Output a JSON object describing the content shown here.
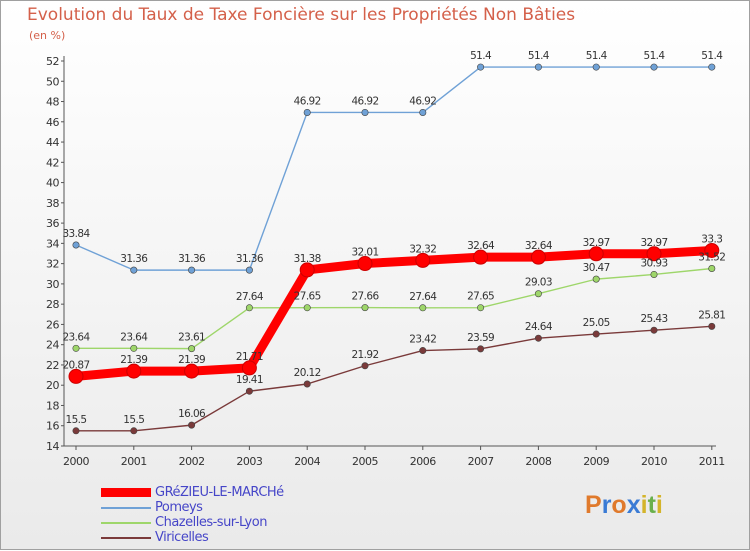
{
  "chart_data": {
    "type": "line",
    "title": "Evolution du Taux de Taxe Foncière sur les Propriétés Non Bâties",
    "ylabel": "(en %)",
    "xlabel": "",
    "categories": [
      "2000",
      "2001",
      "2002",
      "2003",
      "2004",
      "2005",
      "2006",
      "2007",
      "2008",
      "2009",
      "2010",
      "2011"
    ],
    "ylim": [
      14,
      52
    ],
    "yticks": [
      14,
      16,
      18,
      20,
      22,
      24,
      26,
      28,
      30,
      32,
      34,
      36,
      38,
      40,
      42,
      44,
      46,
      48,
      50,
      52
    ],
    "series": [
      {
        "name": "GRéZIEU-LE-MARCHé",
        "color": "#ff0000",
        "values": [
          20.87,
          21.39,
          21.39,
          21.71,
          31.38,
          32.01,
          32.32,
          32.64,
          32.64,
          32.97,
          32.97,
          33.3
        ],
        "labels": [
          "20.87",
          "21.39",
          "21.39",
          "21.71",
          "31.38",
          "32.01",
          "32.32",
          "32.64",
          "32.64",
          "32.97",
          "32.97",
          "33.3"
        ]
      },
      {
        "name": "Pomeys",
        "color": "#6fa1d6",
        "values": [
          33.84,
          31.36,
          31.36,
          31.36,
          46.92,
          46.92,
          46.92,
          51.4,
          51.4,
          51.4,
          51.4,
          51.4
        ],
        "labels": [
          "33.84",
          "31.36",
          "31.36",
          "31.36",
          "46.92",
          "46.92",
          "46.92",
          "51.4",
          "51.4",
          "51.4",
          "51.4",
          "51.4"
        ]
      },
      {
        "name": "Chazelles-sur-Lyon",
        "color": "#9ed66a",
        "values": [
          23.64,
          23.64,
          23.61,
          27.64,
          27.65,
          27.66,
          27.64,
          27.65,
          29.03,
          30.47,
          30.93,
          31.52
        ],
        "labels": [
          "23.64",
          "23.64",
          "23.61",
          "27.64",
          "27.65",
          "27.66",
          "27.64",
          "27.65",
          "29.03",
          "30.47",
          "30.93",
          "31.52"
        ]
      },
      {
        "name": "Viricelles",
        "color": "#7a3a3a",
        "values": [
          15.5,
          15.5,
          16.06,
          19.41,
          20.12,
          21.92,
          23.42,
          23.59,
          24.64,
          25.05,
          25.43,
          25.81
        ],
        "labels": [
          "15.5",
          "15.5",
          "16.06",
          "19.41",
          "20.12",
          "21.92",
          "23.42",
          "23.59",
          "24.64",
          "25.05",
          "25.43",
          "25.81"
        ]
      }
    ]
  },
  "logo": {
    "text": "Proxiti",
    "letters": [
      "P",
      "r",
      "o",
      "x",
      "i",
      "t",
      "i"
    ],
    "colors": [
      "#e07a2c",
      "#3a7bd5",
      "#e07a2c",
      "#3a7bd5",
      "#d4b42a",
      "#6ab04c",
      "#d4b42a"
    ]
  }
}
